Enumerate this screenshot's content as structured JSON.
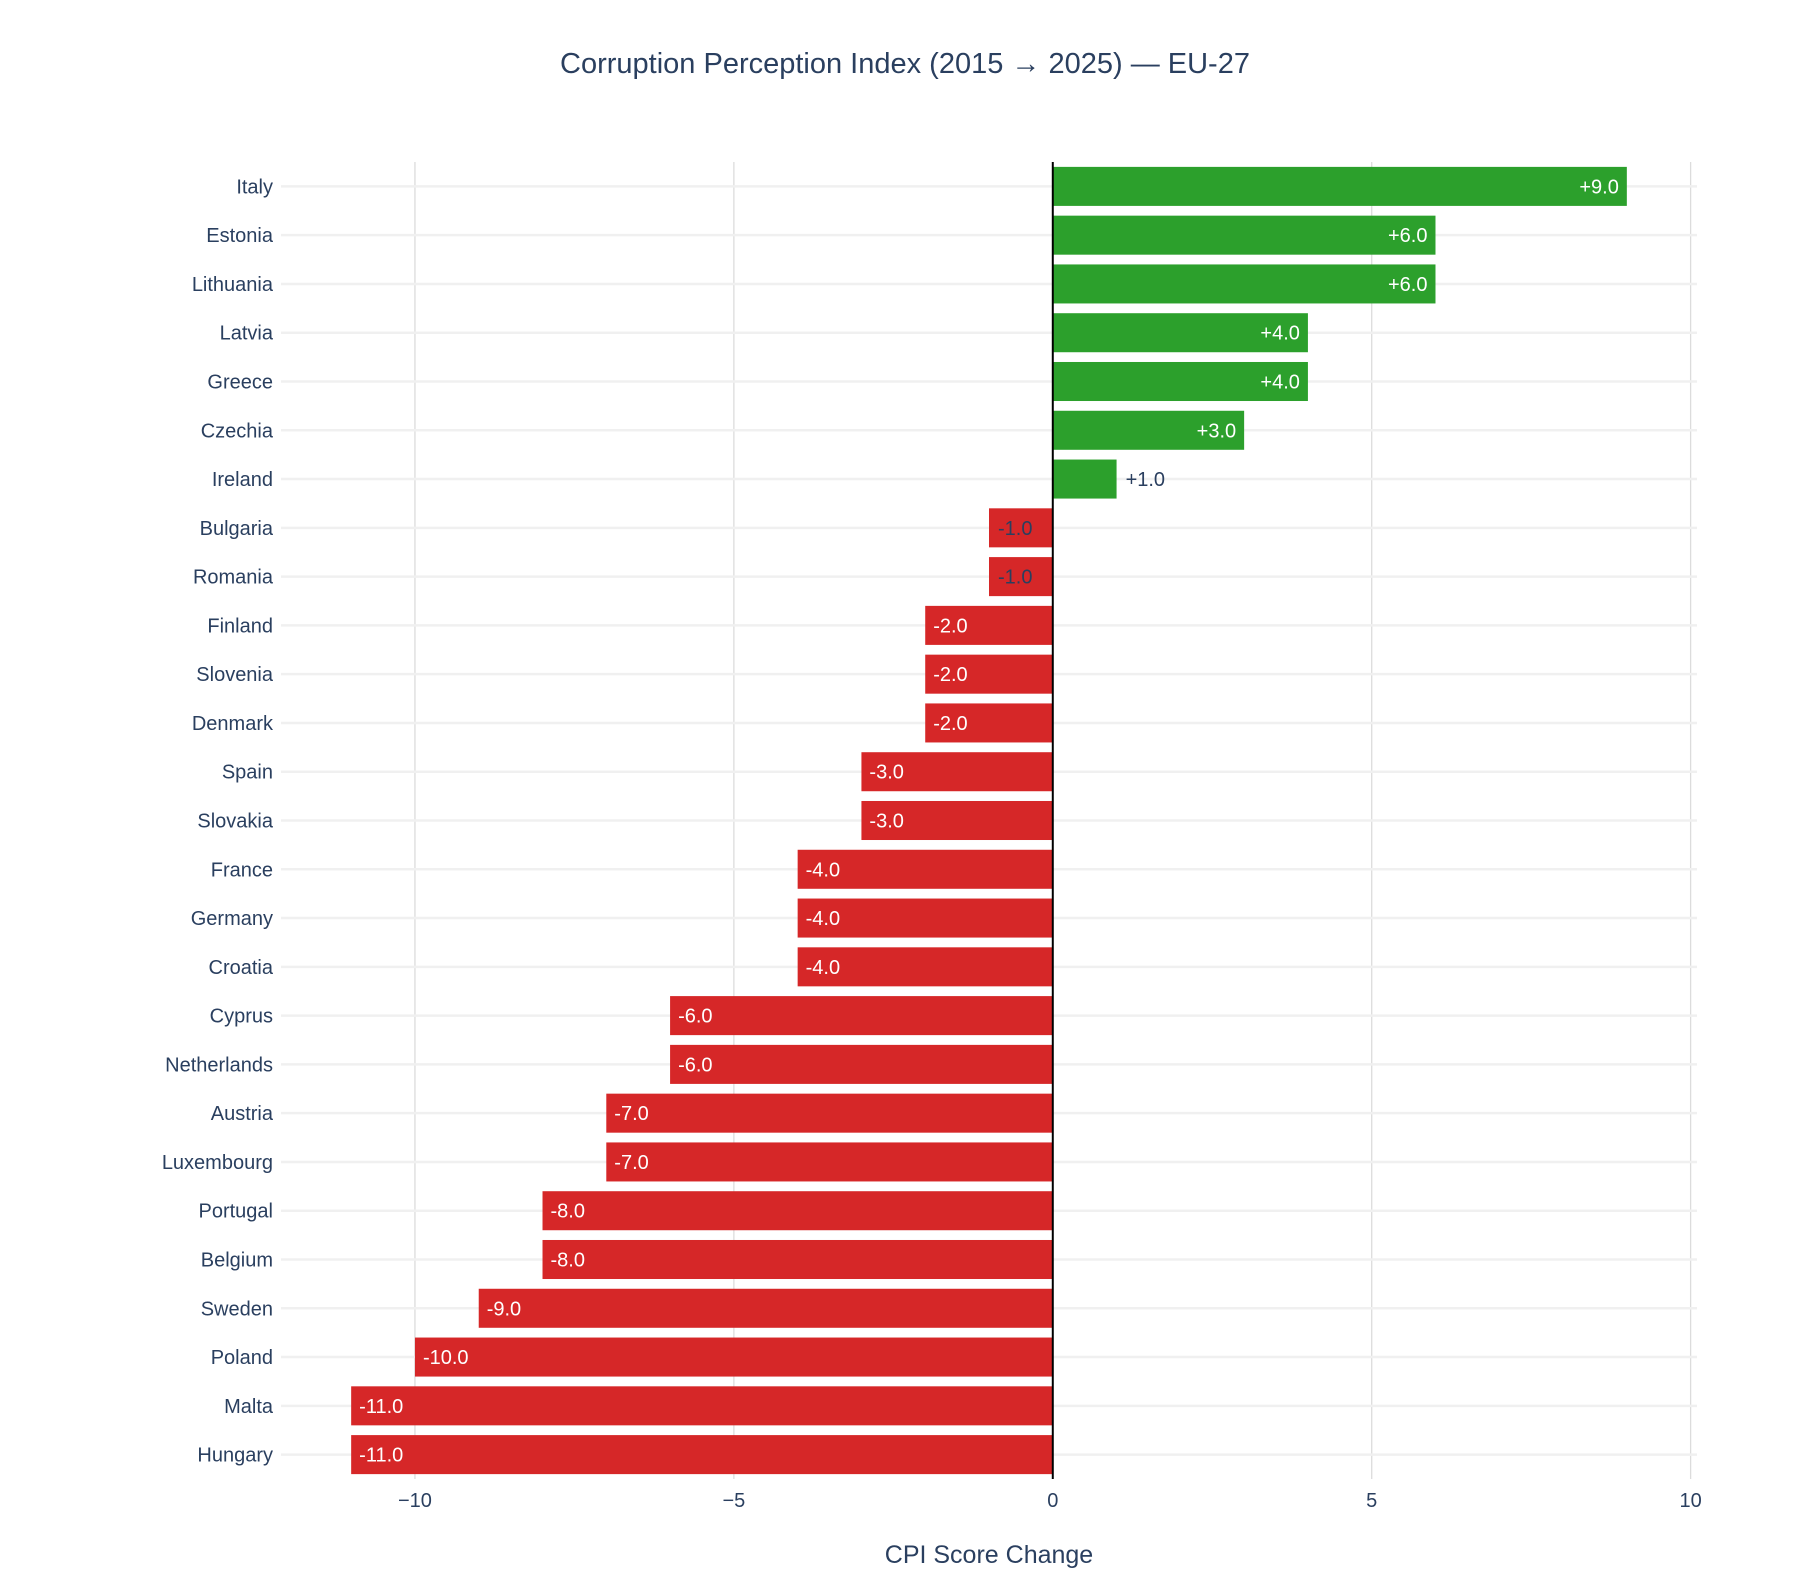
{
  "chart_data": {
    "type": "bar",
    "orientation": "horizontal",
    "title": "Corruption Perception Index (2015 → 2025) — EU-27",
    "xlabel": "CPI Score Change",
    "ylabel": "",
    "xlim": [
      -12.1,
      10.1
    ],
    "xticks": [
      -10,
      -5,
      0,
      5,
      10
    ],
    "xtick_labels": [
      "−10",
      "−5",
      "0",
      "5",
      "10"
    ],
    "grid": true,
    "categories": [
      "Italy",
      "Estonia",
      "Lithuania",
      "Latvia",
      "Greece",
      "Czechia",
      "Ireland",
      "Bulgaria",
      "Romania",
      "Finland",
      "Slovenia",
      "Denmark",
      "Spain",
      "Slovakia",
      "France",
      "Germany",
      "Croatia",
      "Cyprus",
      "Netherlands",
      "Austria",
      "Luxembourg",
      "Portugal",
      "Belgium",
      "Sweden",
      "Poland",
      "Malta",
      "Hungary"
    ],
    "values": [
      9,
      6,
      6,
      4,
      4,
      3,
      1,
      -1,
      -1,
      -2,
      -2,
      -2,
      -3,
      -3,
      -4,
      -4,
      -4,
      -6,
      -6,
      -7,
      -7,
      -8,
      -8,
      -9,
      -10,
      -11,
      -11
    ],
    "data_labels": [
      "+9.0",
      "+6.0",
      "+6.0",
      "+4.0",
      "+4.0",
      "+3.0",
      "+1.0",
      "-1.0",
      "-1.0",
      "-2.0",
      "-2.0",
      "-2.0",
      "-3.0",
      "-3.0",
      "-4.0",
      "-4.0",
      "-4.0",
      "-6.0",
      "-6.0",
      "-7.0",
      "-7.0",
      "-8.0",
      "-8.0",
      "-9.0",
      "-10.0",
      "-11.0",
      "-11.0"
    ],
    "colors": {
      "positive": "#2ca02c",
      "negative": "#d62728"
    }
  }
}
